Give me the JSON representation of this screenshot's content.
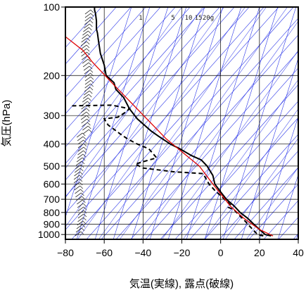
{
  "chart_data": {
    "type": "line",
    "chart_kind": "emagram",
    "xlabel": "気温(実線), 露点(破線)",
    "ylabel": "気圧(hPa)",
    "xlim": [
      -80,
      40
    ],
    "ylim": [
      1050,
      100
    ],
    "yscale": "log",
    "grid": true,
    "x_ticks": [
      -80,
      -60,
      -40,
      -20,
      0,
      20,
      40
    ],
    "y_ticks": [
      100,
      200,
      300,
      400,
      500,
      600,
      700,
      800,
      900,
      1000
    ],
    "mixing_ratio_labels": [
      "1",
      "5",
      "10",
      "15",
      "20g"
    ],
    "colors": {
      "temperature": "#000000",
      "dewpoint": "#000000",
      "reference_line": "#e00000",
      "guide_lines": "#2a35e8",
      "grid": "#000000"
    },
    "series": [
      {
        "type": "temperature",
        "points": [
          [
            26,
            1015
          ],
          [
            23,
            1000
          ],
          [
            20,
            950
          ],
          [
            17,
            900
          ],
          [
            14,
            850
          ],
          [
            10,
            800
          ],
          [
            7,
            750
          ],
          [
            3,
            700
          ],
          [
            0,
            650
          ],
          [
            -3,
            600
          ],
          [
            -4,
            550
          ],
          [
            -7,
            500
          ],
          [
            -10,
            470
          ],
          [
            -15,
            450
          ],
          [
            -21,
            420
          ],
          [
            -26,
            400
          ],
          [
            -32,
            370
          ],
          [
            -36,
            350
          ],
          [
            -43,
            310
          ],
          [
            -47,
            280
          ],
          [
            -50,
            250
          ],
          [
            -54,
            230
          ],
          [
            -55,
            215
          ],
          [
            -59,
            200
          ],
          [
            -60,
            180
          ],
          [
            -62,
            160
          ],
          [
            -63,
            140
          ],
          [
            -63.5,
            130
          ],
          [
            -64,
            125
          ],
          [
            -64,
            115
          ],
          [
            -64.5,
            107
          ],
          [
            -65,
            103
          ],
          [
            -65,
            100
          ]
        ]
      },
      {
        "type": "dewpoint",
        "points": [
          [
            22,
            1015
          ],
          [
            19,
            1000
          ],
          [
            17,
            960
          ],
          [
            15,
            920
          ],
          [
            13,
            880
          ],
          [
            10,
            830
          ],
          [
            7,
            780
          ],
          [
            4,
            760
          ],
          [
            5,
            740
          ],
          [
            2,
            700
          ],
          [
            -3,
            640
          ],
          [
            -6,
            600
          ],
          [
            -8,
            560
          ],
          [
            -9,
            540
          ],
          [
            -24,
            530
          ],
          [
            -40,
            510
          ],
          [
            -44,
            490
          ],
          [
            -33,
            460
          ],
          [
            -37,
            420
          ],
          [
            -43,
            400
          ],
          [
            -48,
            380
          ],
          [
            -52,
            360
          ],
          [
            -58,
            330
          ],
          [
            -60,
            310
          ],
          [
            -53,
            305
          ],
          [
            -49,
            290
          ],
          [
            -47,
            280
          ],
          [
            -56,
            270
          ],
          [
            -78,
            272
          ]
        ]
      },
      {
        "type": "reference",
        "points": [
          [
            27,
            1015
          ],
          [
            20,
            950
          ],
          [
            12,
            850
          ],
          [
            5,
            750
          ],
          [
            -4,
            600
          ],
          [
            -11,
            500
          ],
          [
            -28,
            380
          ],
          [
            -55,
            220
          ],
          [
            -66,
            175
          ],
          [
            -71,
            155
          ],
          [
            -80,
            135
          ]
        ]
      }
    ],
    "wind_barbs": "present"
  }
}
